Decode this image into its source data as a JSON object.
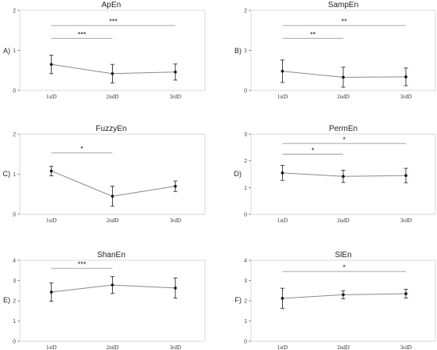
{
  "chart_data": [
    {
      "type": "line",
      "panel_label": "A)",
      "title": "ApEn",
      "categories": [
        "1stD",
        "2ndD",
        "3rdD"
      ],
      "values": [
        0.65,
        0.42,
        0.46
      ],
      "errors": [
        0.23,
        0.23,
        0.2
      ],
      "ylim": [
        0,
        2
      ],
      "yticks": [
        "0",
        "1",
        "2"
      ],
      "significance": [
        {
          "from": 0,
          "to": 2,
          "label": "***",
          "y": 1.62
        },
        {
          "from": 0,
          "to": 1,
          "label": "***",
          "y": 1.3
        }
      ]
    },
    {
      "type": "line",
      "panel_label": "B)",
      "title": "SampEn",
      "categories": [
        "1stD",
        "2ndD",
        "3rdD"
      ],
      "values": [
        0.48,
        0.33,
        0.34
      ],
      "errors": [
        0.28,
        0.25,
        0.22
      ],
      "ylim": [
        0,
        2
      ],
      "yticks": [
        "0",
        "1",
        "2"
      ],
      "significance": [
        {
          "from": 0,
          "to": 2,
          "label": "**",
          "y": 1.62
        },
        {
          "from": 0,
          "to": 1,
          "label": "**",
          "y": 1.3
        }
      ]
    },
    {
      "type": "line",
      "panel_label": "C)",
      "title": "FuzzyEn",
      "categories": [
        "1stD",
        "2ndD",
        "3rdD"
      ],
      "values": [
        1.08,
        0.45,
        0.7
      ],
      "errors": [
        0.12,
        0.25,
        0.13
      ],
      "ylim": [
        0,
        2
      ],
      "yticks": [
        "0",
        "1",
        "2"
      ],
      "significance": [
        {
          "from": 0,
          "to": 1,
          "label": "*",
          "y": 1.53
        }
      ]
    },
    {
      "type": "line",
      "panel_label": "D)",
      "title": "PermEn",
      "categories": [
        "1stD",
        "2ndD",
        "3rdD"
      ],
      "values": [
        1.55,
        1.42,
        1.45
      ],
      "errors": [
        0.28,
        0.23,
        0.27
      ],
      "ylim": [
        0,
        3
      ],
      "yticks": [
        "0",
        "1",
        "2",
        "3"
      ],
      "significance": [
        {
          "from": 0,
          "to": 2,
          "label": "*",
          "y": 2.65
        },
        {
          "from": 0,
          "to": 1,
          "label": "*",
          "y": 2.25
        }
      ]
    },
    {
      "type": "line",
      "panel_label": "E)",
      "title": "ShanEn",
      "categories": [
        "1stD",
        "2ndD",
        "3rdD"
      ],
      "values": [
        2.43,
        2.78,
        2.63
      ],
      "errors": [
        0.45,
        0.42,
        0.5
      ],
      "ylim": [
        0,
        4
      ],
      "yticks": [
        "0",
        "1",
        "2",
        "3",
        "4"
      ],
      "significance": [
        {
          "from": 0,
          "to": 1,
          "label": "***",
          "y": 3.6
        }
      ]
    },
    {
      "type": "line",
      "panel_label": "F)",
      "title": "SlEn",
      "categories": [
        "1stD",
        "2ndD",
        "3rdD"
      ],
      "values": [
        2.12,
        2.3,
        2.35
      ],
      "errors": [
        0.5,
        0.2,
        0.22
      ],
      "ylim": [
        0,
        4
      ],
      "yticks": [
        "0",
        "1",
        "2",
        "3",
        "4"
      ],
      "significance": [
        {
          "from": 0,
          "to": 2,
          "label": "*",
          "y": 3.45
        }
      ]
    }
  ]
}
